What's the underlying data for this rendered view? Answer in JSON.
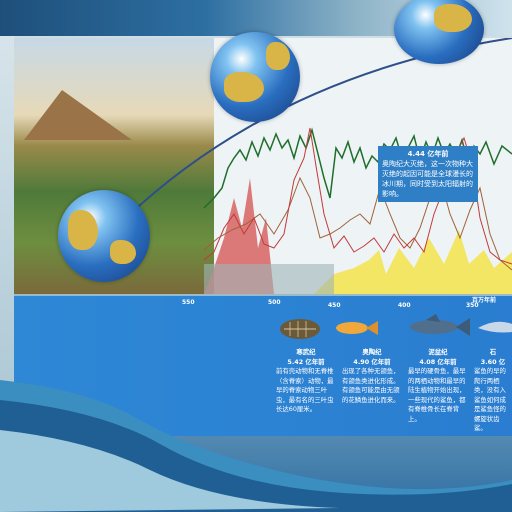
{
  "annotation": {
    "age": "4.44 亿年前",
    "text": "奥陶纪大灭绝，这一次物种大灭绝的起因可能是全球漫长的冰川期，同时受到太阳辐射的影响。"
  },
  "axis": {
    "ticks": [
      "550",
      "500",
      "450",
      "400",
      "350"
    ],
    "unit_label": "百万年前"
  },
  "entries": [
    {
      "era": "寒武纪",
      "age": "5.42 亿年前",
      "text": "前有壳动物和无脊椎（含脊索）动物，最早的脊索动物三叶虫，最有名的三叶虫长达60厘米。"
    },
    {
      "era": "奥陶纪",
      "age": "4.90 亿年前",
      "text": "出现了各种无颌鱼，有颌鱼类进化形成。有颌鱼可能是由无颌的花鳞鱼进化而来。"
    },
    {
      "era": "泥盆纪",
      "age": "4.08 亿年前",
      "text": "最早的硬骨鱼，最早的两栖动物和最早的陆生植物开始出现，一些现代的鲨鱼，都有脊椎骨长在脊背上。"
    },
    {
      "era": "石",
      "age": "3.60 亿",
      "text": "鲨鱼的早的爬行两栖类，没有入鲨鱼如何成是鲨鱼怪的螺旋状齿鲨。"
    }
  ],
  "colors": {
    "green_line": "#1f6e2c",
    "red_line": "#c23a3a",
    "brown_line": "#a0623a",
    "yellow_fill": "#f2e34a",
    "red_fill": "#d65a5a",
    "panel_blue": "#2e88d6"
  }
}
